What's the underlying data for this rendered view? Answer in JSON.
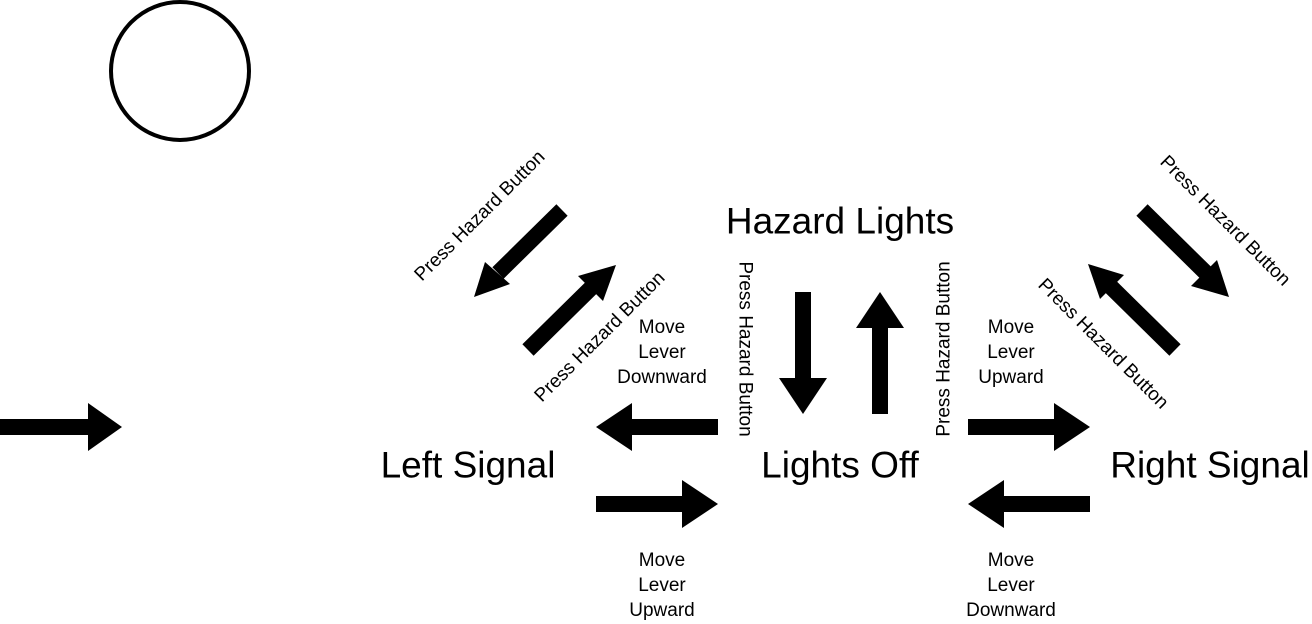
{
  "colors": {
    "ink": "#000000",
    "background": "#ffffff"
  },
  "states": {
    "hazard": "Hazard Lights",
    "off": "Lights Off",
    "left": "Left Signal",
    "right": "Right Signal"
  },
  "transitions": {
    "left_to_hazard": "Press Hazard Button",
    "hazard_to_left": "Press Hazard Button",
    "off_to_hazard": "Press Hazard Button",
    "hazard_to_off": "Press Hazard Button",
    "right_to_hazard": "Press Hazard Button",
    "hazard_to_right": "Press Hazard Button",
    "off_to_left": [
      "Move",
      "Lever",
      "Downward"
    ],
    "left_to_off": [
      "Move",
      "Lever",
      "Upward"
    ],
    "off_to_right": [
      "Move",
      "Lever",
      "Upward"
    ],
    "right_to_off": [
      "Move",
      "Lever",
      "Downward"
    ]
  },
  "legend": {
    "initial_state_symbol": "circle",
    "transition_symbol": "arrow"
  }
}
